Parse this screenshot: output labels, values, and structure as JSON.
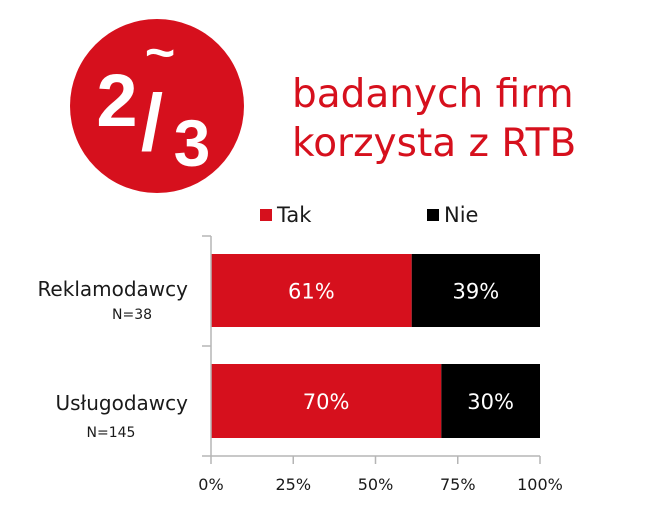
{
  "badge": {
    "numerator": "2",
    "tilde": "~",
    "slash": "/",
    "denominator": "3",
    "color": "#d6101d"
  },
  "headline": {
    "line1": "badanych firm",
    "line2": "korzysta z RTB"
  },
  "chart_data": {
    "type": "bar",
    "orientation": "horizontal",
    "stacked": true,
    "categories": [
      "Reklamodawcy",
      "Usługodawcy"
    ],
    "category_notes": [
      "N=38",
      "N=145"
    ],
    "series": [
      {
        "name": "Tak",
        "color": "#d6101d",
        "values": [
          61,
          70
        ],
        "labels": [
          "61%",
          "70%"
        ]
      },
      {
        "name": "Nie",
        "color": "#000000",
        "values": [
          39,
          30
        ],
        "labels": [
          "39%",
          "30%"
        ]
      }
    ],
    "xlim": [
      0,
      100
    ],
    "xticks": [
      0,
      25,
      50,
      75,
      100
    ],
    "xtick_labels": [
      "0%",
      "25%",
      "50%",
      "75%",
      "100%"
    ],
    "grid": false,
    "legend_placement": "top"
  }
}
